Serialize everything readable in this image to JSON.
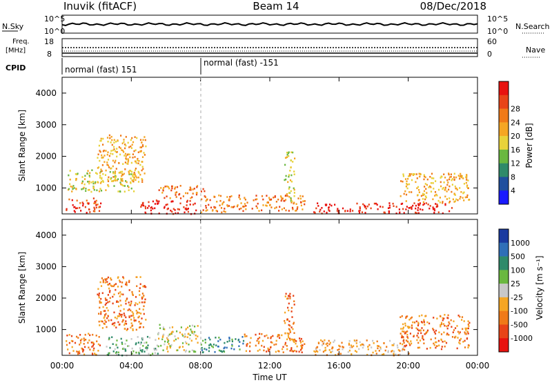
{
  "header": {
    "station": "Inuvik (fitACF)",
    "beam": "Beam 14",
    "date": "08/Dec/2018"
  },
  "noise_panel": {
    "left_label": "N.Sky",
    "left_ticks": [
      "10^5",
      "10^0"
    ],
    "right_label": "N.Search",
    "right_ticks": [
      "10^5",
      "10^0"
    ]
  },
  "freq_panel": {
    "left_label_line1": "Freq.",
    "left_label_line2": "[MHz]",
    "left_ticks": [
      "18",
      "8"
    ],
    "right_label": "Nave",
    "right_ticks": [
      "60",
      "0"
    ]
  },
  "cpid": {
    "label": "CPID",
    "segments": [
      {
        "start_hour": 0,
        "text": "normal (fast) 151"
      },
      {
        "start_hour": 8,
        "text": "normal (fast) -151"
      }
    ]
  },
  "x_axis": {
    "label": "Time UT",
    "ticks": [
      "00:00",
      "04:00",
      "08:00",
      "12:00",
      "16:00",
      "20:00",
      "00:00"
    ]
  },
  "power_panel": {
    "ylabel": "Slant Range [km]",
    "yticks": [
      "1000",
      "2000",
      "3000",
      "4000"
    ],
    "colorbar_label": "Power [dB]",
    "colorbar_ticks": [
      "4",
      "8",
      "12",
      "16",
      "20",
      "24",
      "28"
    ],
    "colors": [
      "#1a1aff",
      "#1f4f9e",
      "#2f8a6a",
      "#6ab840",
      "#e8d23a",
      "#f5a623",
      "#f07a18",
      "#e84418",
      "#e8120f"
    ]
  },
  "velocity_panel": {
    "ylabel": "Slant Range [km]",
    "yticks": [
      "1000",
      "2000",
      "3000",
      "4000"
    ],
    "colorbar_label": "Velocity [m s⁻¹]",
    "colorbar_ticks": [
      "1000",
      "500",
      "100",
      "25",
      "-25",
      "-100",
      "-500",
      "-1000"
    ],
    "colors": [
      "#1a3aa0",
      "#2f6fb8",
      "#2f8a6a",
      "#6ab840",
      "#c8c8c8",
      "#f5a623",
      "#f07a18",
      "#e84418",
      "#e8120f"
    ]
  },
  "chart_data": {
    "type": "heatmap",
    "x_range_hours": [
      0,
      24
    ],
    "y_range_km": [
      180,
      4500
    ],
    "power_clusters": [
      {
        "t0": 0.2,
        "t1": 2.2,
        "r0": 200,
        "r1": 700,
        "level": 7
      },
      {
        "t0": 0.3,
        "t1": 4.2,
        "r0": 900,
        "r1": 1600,
        "level": 4
      },
      {
        "t0": 2.0,
        "t1": 4.8,
        "r0": 1200,
        "r1": 2700,
        "level": 5
      },
      {
        "t0": 4.5,
        "t1": 7.8,
        "r0": 200,
        "r1": 650,
        "level": 8
      },
      {
        "t0": 5.5,
        "t1": 8.2,
        "r0": 700,
        "r1": 1100,
        "level": 6
      },
      {
        "t0": 8.0,
        "t1": 10.0,
        "r0": 250,
        "r1": 800,
        "level": 6
      },
      {
        "t0": 10.0,
        "t1": 14.0,
        "r0": 300,
        "r1": 800,
        "level": 6
      },
      {
        "t0": 14.5,
        "t1": 22.5,
        "r0": 220,
        "r1": 550,
        "level": 8
      },
      {
        "t0": 19.5,
        "t1": 23.5,
        "r0": 550,
        "r1": 1500,
        "level": 5
      },
      {
        "t0": 12.8,
        "t1": 13.4,
        "r0": 600,
        "r1": 2200,
        "level": 4
      }
    ],
    "velocity_clusters": [
      {
        "t0": 0.2,
        "t1": 2.2,
        "r0": 200,
        "r1": 900,
        "level": 6
      },
      {
        "t0": 2.0,
        "t1": 4.8,
        "r0": 1000,
        "r1": 2700,
        "level": 6
      },
      {
        "t0": 2.5,
        "t1": 5.5,
        "r0": 200,
        "r1": 800,
        "level": 3
      },
      {
        "t0": 5.5,
        "t1": 7.8,
        "r0": 300,
        "r1": 1200,
        "level": 4
      },
      {
        "t0": 8.0,
        "t1": 10.5,
        "r0": 300,
        "r1": 800,
        "level": 2
      },
      {
        "t0": 10.5,
        "t1": 14.0,
        "r0": 300,
        "r1": 900,
        "level": 6
      },
      {
        "t0": 14.5,
        "t1": 20.0,
        "r0": 200,
        "r1": 700,
        "level": 5
      },
      {
        "t0": 19.5,
        "t1": 23.5,
        "r0": 400,
        "r1": 1500,
        "level": 6
      },
      {
        "t0": 12.8,
        "t1": 13.4,
        "r0": 600,
        "r1": 2200,
        "level": 6
      }
    ]
  }
}
